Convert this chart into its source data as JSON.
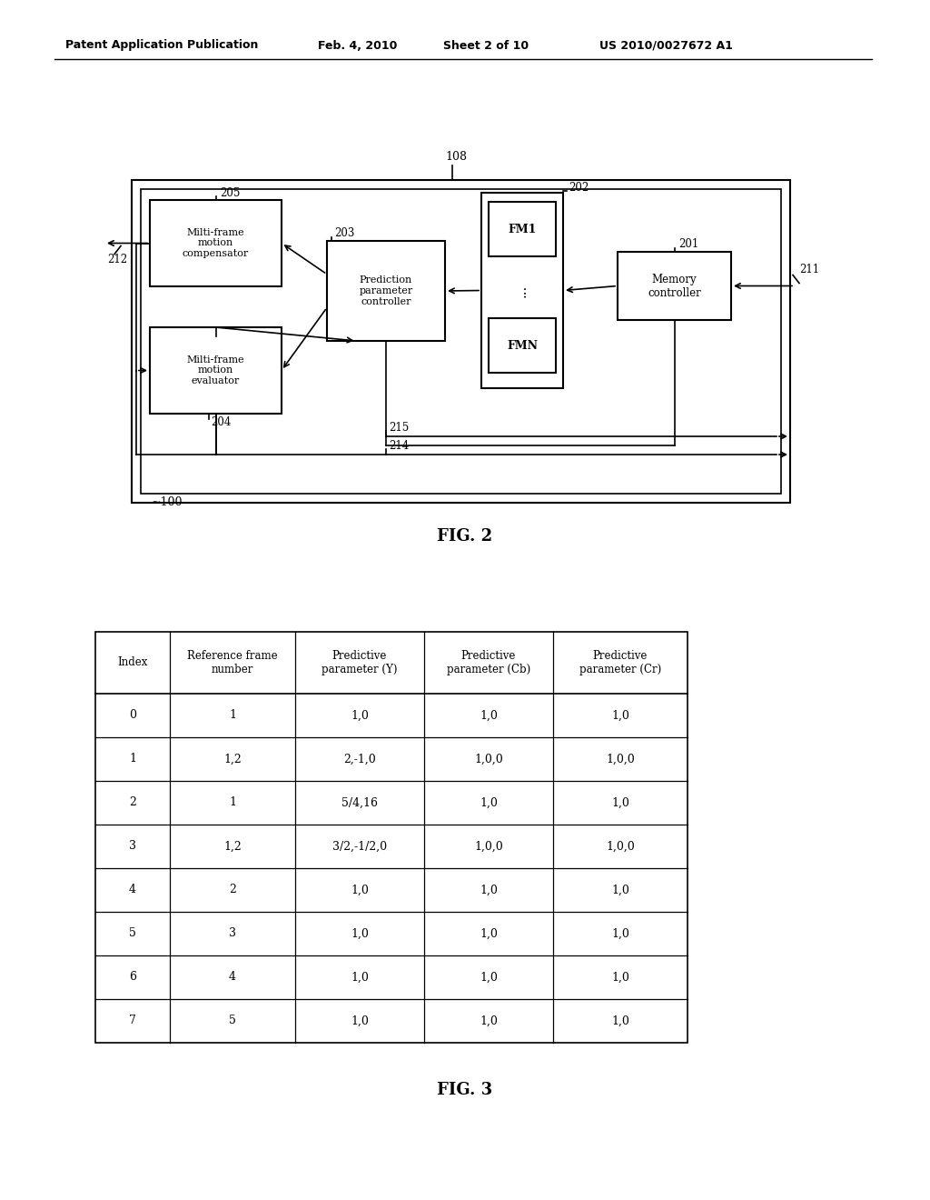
{
  "header_line1": "Patent Application Publication",
  "header_line2": "Feb. 4, 2010",
  "header_line3": "Sheet 2 of 10",
  "header_line4": "US 2010/0027672 A1",
  "fig2_label": "FIG. 2",
  "fig3_label": "FIG. 3",
  "label_108": "108",
  "label_100": "100",
  "label_205": "205",
  "label_203": "203",
  "label_202": "202",
  "label_201": "201",
  "label_211": "211",
  "label_212": "212",
  "label_204": "204",
  "label_215": "215",
  "label_214": "214",
  "box_compensator": "Milti-frame\nmotion\ncompensator",
  "box_evaluator": "Milti-frame\nmotion\nevaluator",
  "box_prediction": "Prediction\nparameter\ncontroller",
  "box_memory": "Memory\ncontroller",
  "box_fm1": "FM1",
  "box_fmn": "FMN",
  "table_headers": [
    "Index",
    "Reference frame\nnumber",
    "Predictive\nparameter (Y)",
    "Predictive\nparameter (Cb)",
    "Predictive\nparameter (Cr)"
  ],
  "table_data": [
    [
      "0",
      "1",
      "1,0",
      "1,0",
      "1,0"
    ],
    [
      "1",
      "1,2",
      "2,-1,0",
      "1,0,0",
      "1,0,0"
    ],
    [
      "2",
      "1",
      "5/4,16",
      "1,0",
      "1,0"
    ],
    [
      "3",
      "1,2",
      "3/2,-1/2,0",
      "1,0,0",
      "1,0,0"
    ],
    [
      "4",
      "2",
      "1,0",
      "1,0",
      "1,0"
    ],
    [
      "5",
      "3",
      "1,0",
      "1,0",
      "1,0"
    ],
    [
      "6",
      "4",
      "1,0",
      "1,0",
      "1,0"
    ],
    [
      "7",
      "5",
      "1,0",
      "1,0",
      "1,0"
    ]
  ],
  "bg_color": "#ffffff",
  "text_color": "#000000",
  "line_color": "#000000"
}
